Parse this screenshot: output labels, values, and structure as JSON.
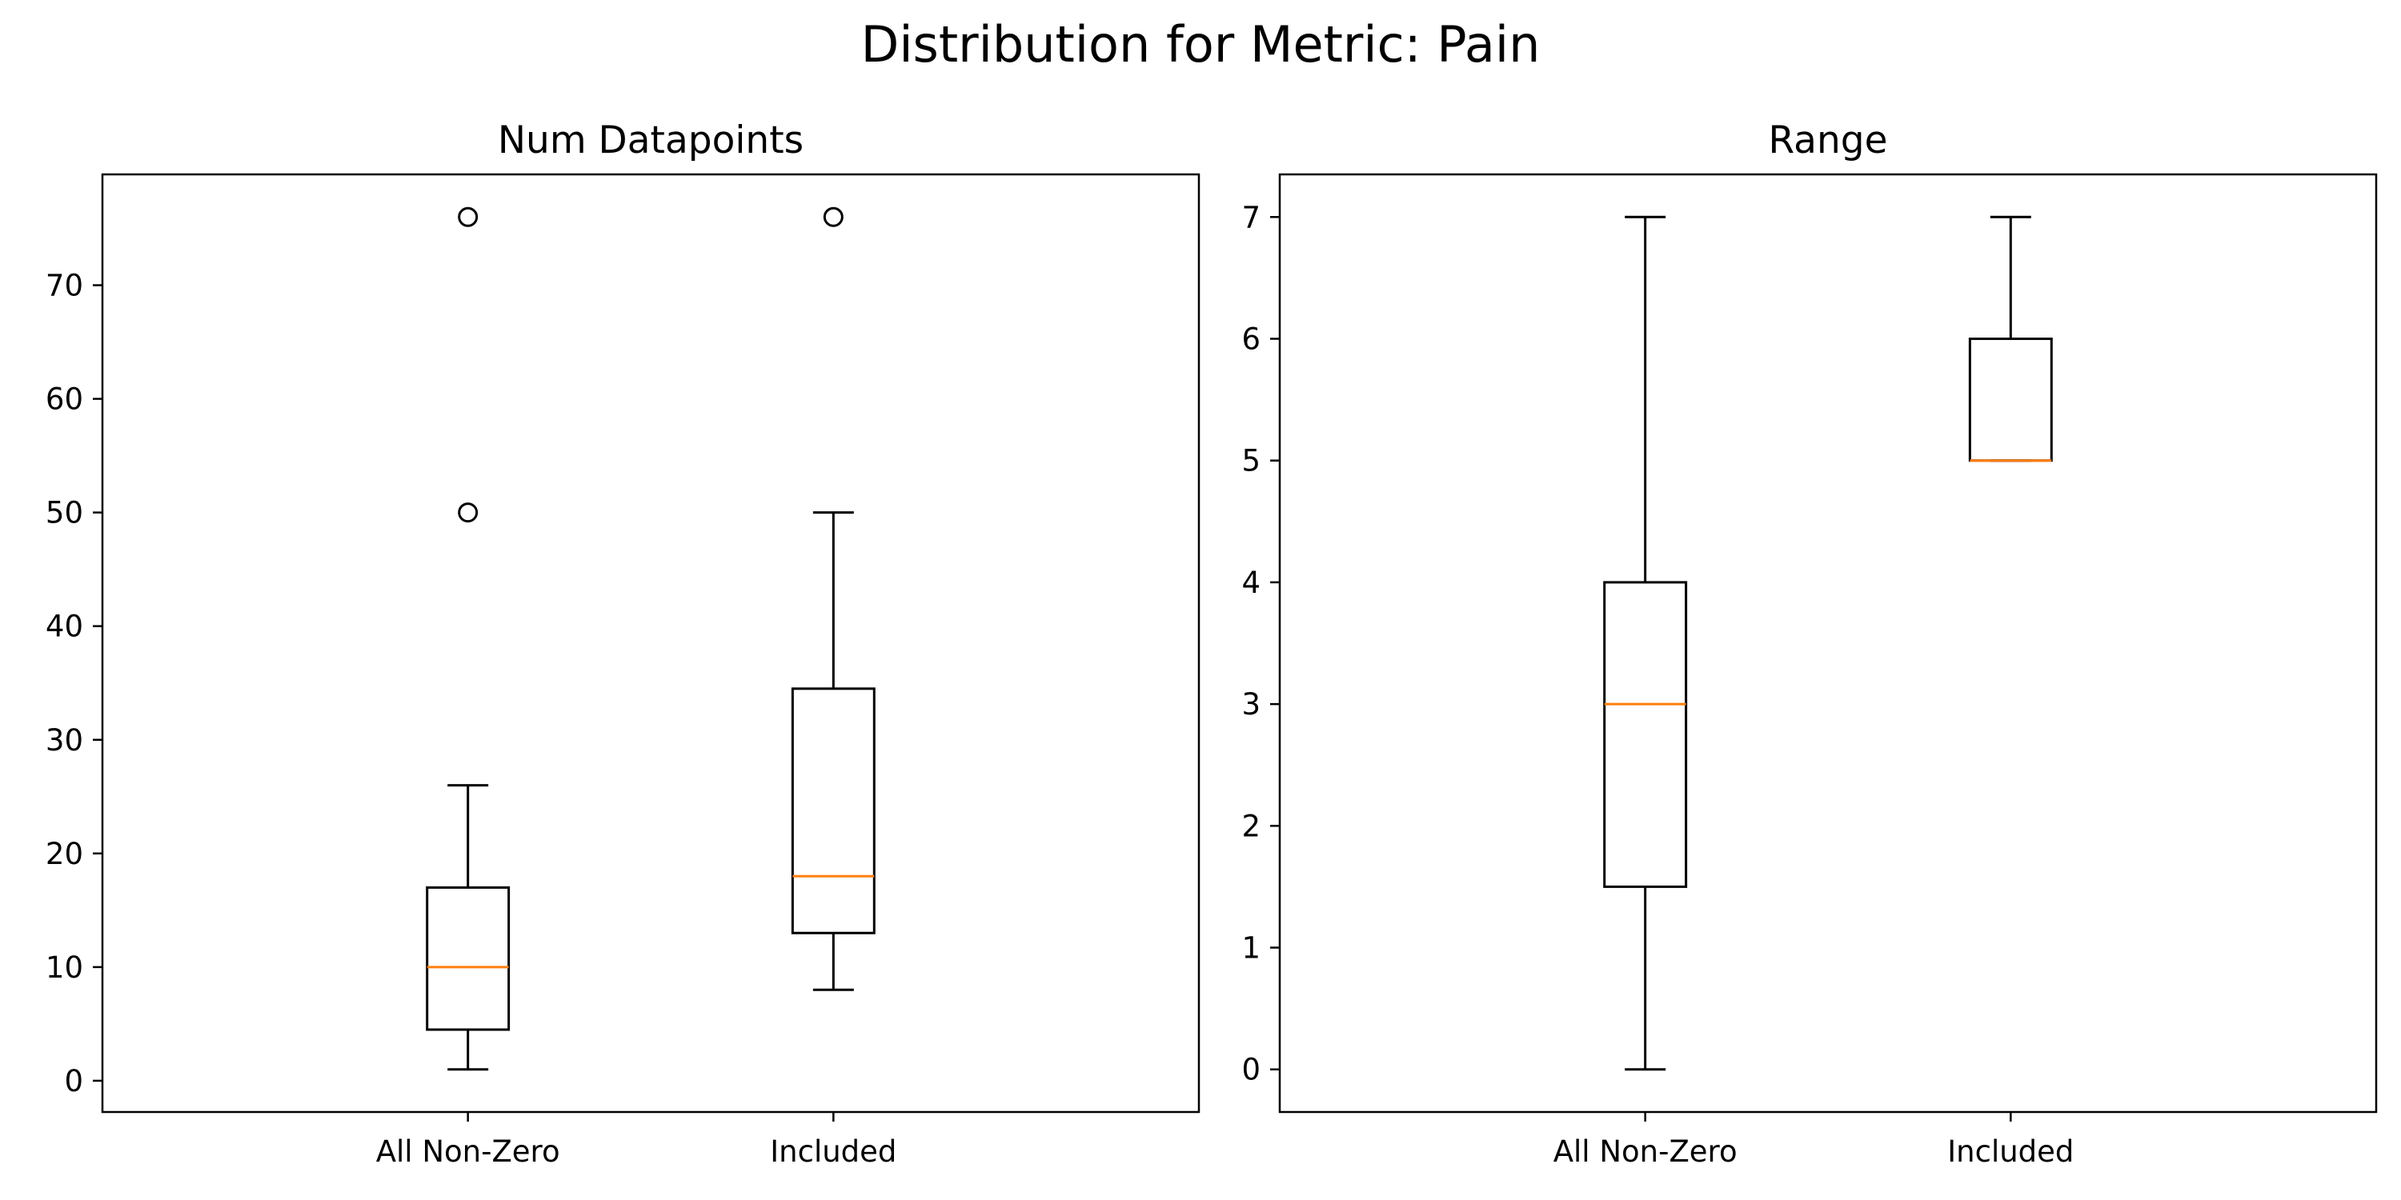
{
  "chart_data": {
    "suptitle": "Distribution for Metric: Pain",
    "colors": {
      "box": "#000000",
      "median": "#ff7f0e",
      "flier": "#000000"
    },
    "panels": [
      {
        "id": "num-datapoints",
        "title": "Num Datapoints",
        "type": "box",
        "categories": [
          "All Non-Zero",
          "Included"
        ],
        "ylim": [
          -2.75,
          79.75
        ],
        "yticks": [
          0,
          10,
          20,
          30,
          40,
          50,
          60,
          70
        ],
        "grid": false,
        "boxes": [
          {
            "category": "All Non-Zero",
            "whisker_low": 1,
            "q1": 4.5,
            "median": 10,
            "q3": 17,
            "whisker_high": 26,
            "fliers": [
              50,
              76
            ]
          },
          {
            "category": "Included",
            "whisker_low": 8,
            "q1": 13,
            "median": 18,
            "q3": 34.5,
            "whisker_high": 50,
            "fliers": [
              76
            ]
          }
        ]
      },
      {
        "id": "range",
        "title": "Range",
        "type": "box",
        "categories": [
          "All Non-Zero",
          "Included"
        ],
        "ylim": [
          -0.35,
          7.35
        ],
        "yticks": [
          0,
          1,
          2,
          3,
          4,
          5,
          6,
          7
        ],
        "grid": false,
        "boxes": [
          {
            "category": "All Non-Zero",
            "whisker_low": 0,
            "q1": 1.5,
            "median": 3,
            "q3": 4,
            "whisker_high": 7,
            "fliers": []
          },
          {
            "category": "Included",
            "whisker_low": 5,
            "q1": 5,
            "median": 5,
            "q3": 6,
            "whisker_high": 7,
            "fliers": []
          }
        ]
      }
    ]
  }
}
